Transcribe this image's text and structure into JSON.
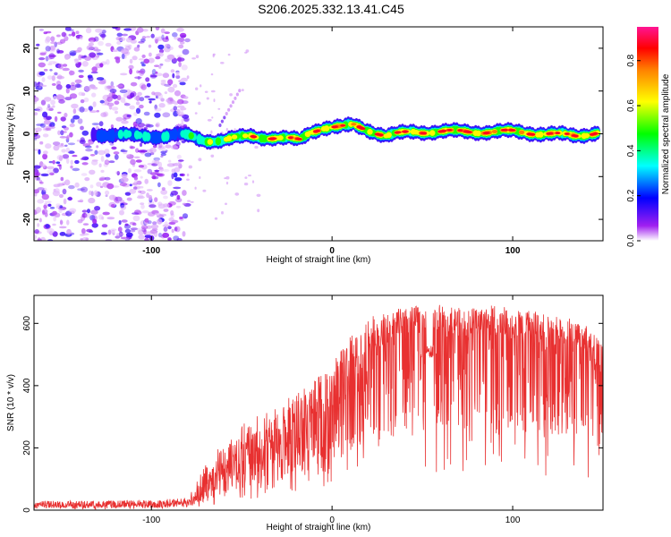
{
  "title": "S206.2025.332.13.41.C45",
  "chart_data": [
    {
      "type": "heatmap",
      "id": "spectrogram",
      "xlabel": "Height of straight line (km)",
      "ylabel": "Frequency (Hz)",
      "xlim": [
        -165,
        150
      ],
      "ylim": [
        -25,
        25
      ],
      "xticks": [
        -100,
        0,
        100
      ],
      "xtick_labels": [
        "-100",
        "0",
        "100"
      ],
      "yticks": [
        -20,
        -10,
        0,
        10,
        20
      ],
      "ytick_labels": [
        "-20",
        "-10",
        "0",
        "10",
        "20"
      ],
      "colorbar": {
        "label": "Normalized spectral amplitude",
        "range": [
          0.0,
          0.95
        ],
        "ticks": [
          0.0,
          0.2,
          0.4,
          0.6,
          0.8
        ],
        "tick_labels": [
          "0.0",
          "0.2",
          "0.4",
          "0.6",
          "0.8"
        ]
      },
      "noise_region_x": [
        -165,
        -80
      ],
      "ridge": [
        {
          "x": -132,
          "f": 0.0,
          "a": 0.25
        },
        {
          "x": -110,
          "f": -0.5,
          "a": 0.45
        },
        {
          "x": -95,
          "f": -0.5,
          "a": 0.4
        },
        {
          "x": -85,
          "f": -0.3,
          "a": 0.35
        },
        {
          "x": -80,
          "f": -0.5,
          "a": 0.45
        },
        {
          "x": -70,
          "f": -1.5,
          "a": 0.55
        },
        {
          "x": -60,
          "f": -1.5,
          "a": 0.7
        },
        {
          "x": -45,
          "f": -0.5,
          "a": 0.75
        },
        {
          "x": -30,
          "f": -1.0,
          "a": 0.8
        },
        {
          "x": -18,
          "f": -1.5,
          "a": 0.8
        },
        {
          "x": -12,
          "f": 0.5,
          "a": 0.85
        },
        {
          "x": -5,
          "f": 1.5,
          "a": 0.9
        },
        {
          "x": 5,
          "f": 1.5,
          "a": 0.9
        },
        {
          "x": 12,
          "f": 2.0,
          "a": 0.85
        },
        {
          "x": 20,
          "f": 1.0,
          "a": 0.85
        },
        {
          "x": 30,
          "f": -0.5,
          "a": 0.8
        },
        {
          "x": 45,
          "f": 0.5,
          "a": 0.85
        },
        {
          "x": 60,
          "f": 0.5,
          "a": 0.9
        },
        {
          "x": 80,
          "f": 0.5,
          "a": 0.9
        },
        {
          "x": 100,
          "f": 0.5,
          "a": 0.9
        },
        {
          "x": 120,
          "f": 0.0,
          "a": 0.9
        },
        {
          "x": 135,
          "f": -0.5,
          "a": 0.85
        },
        {
          "x": 148,
          "f": 0.5,
          "a": 0.85
        }
      ]
    },
    {
      "type": "line",
      "id": "snr",
      "color": "#e83030",
      "xlabel": "Height of straight line (km)",
      "ylabel": "SNR (10 * v/v)",
      "xlim": [
        -165,
        150
      ],
      "ylim": [
        0,
        690
      ],
      "xticks": [
        -100,
        0,
        100
      ],
      "xtick_labels": [
        "-100",
        "0",
        "100"
      ],
      "yticks": [
        0,
        200,
        400,
        600
      ],
      "ytick_labels": [
        "0",
        "200",
        "400",
        "600"
      ],
      "envelope_x": [
        -165,
        -130,
        -100,
        -80,
        -70,
        -60,
        -50,
        -40,
        -30,
        -20,
        -10,
        0,
        10,
        20,
        30,
        40,
        50,
        60,
        70,
        80,
        90,
        100,
        110,
        120,
        130,
        140,
        150
      ],
      "envelope_mean": [
        15,
        15,
        15,
        20,
        60,
        110,
        160,
        190,
        200,
        220,
        270,
        320,
        420,
        500,
        540,
        560,
        570,
        580,
        560,
        560,
        560,
        550,
        550,
        540,
        530,
        520,
        430
      ],
      "envelope_max": [
        30,
        30,
        32,
        40,
        150,
        220,
        280,
        310,
        330,
        380,
        420,
        470,
        560,
        620,
        640,
        650,
        660,
        660,
        650,
        650,
        660,
        650,
        640,
        630,
        620,
        600,
        530
      ]
    }
  ]
}
